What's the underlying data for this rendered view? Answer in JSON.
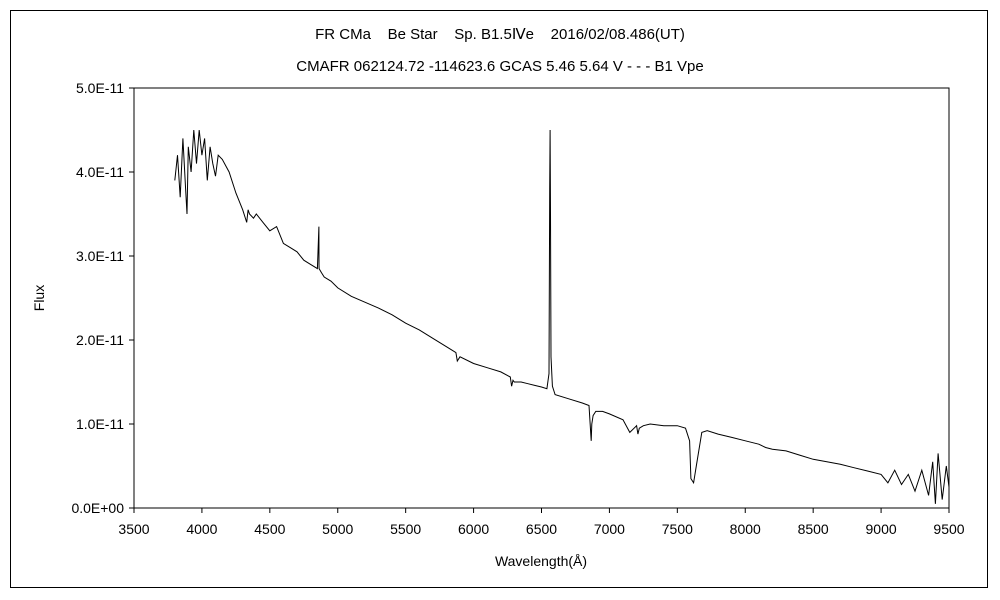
{
  "chart_data": {
    "type": "line",
    "title": "FR CMa    Be Star    Sp. B1.5Ⅳe    2016/02/08.486(UT)",
    "subtitle": "CMAFR 062124.72 -114623.6 GCAS 5.46 5.64 V - - - B1 Vpe",
    "xlabel": "Wavelength(Å)",
    "ylabel": "Flux",
    "xlim": [
      3500,
      9500
    ],
    "ylim": [
      0,
      5e-11
    ],
    "x_ticks": [
      3500,
      4000,
      4500,
      5000,
      5500,
      6000,
      6500,
      7000,
      7500,
      8000,
      8500,
      9000,
      9500
    ],
    "x_tick_labels": [
      "3500",
      "4000",
      "4500",
      "5000",
      "5500",
      "6000",
      "6500",
      "7000",
      "7500",
      "8000",
      "8500",
      "9000",
      "9500"
    ],
    "y_ticks": [
      0,
      1e-11,
      2e-11,
      3e-11,
      4e-11,
      5e-11
    ],
    "y_tick_labels": [
      "0.0E+00",
      "1.0E-11",
      "2.0E-11",
      "3.0E-11",
      "4.0E-11",
      "5.0E-11"
    ],
    "grid": false,
    "series": [
      {
        "color": "#000000",
        "x": [
          3800,
          3820,
          3840,
          3860,
          3880,
          3890,
          3900,
          3920,
          3940,
          3960,
          3980,
          4000,
          4020,
          4040,
          4060,
          4080,
          4100,
          4120,
          4150,
          4200,
          4250,
          4300,
          4330,
          4340,
          4350,
          4380,
          4400,
          4450,
          4500,
          4550,
          4600,
          4650,
          4700,
          4750,
          4800,
          4850,
          4861,
          4862,
          4863,
          4880,
          4900,
          4950,
          5000,
          5100,
          5200,
          5300,
          5400,
          5500,
          5600,
          5700,
          5800,
          5870,
          5880,
          5900,
          6000,
          6100,
          6200,
          6270,
          6280,
          6290,
          6300,
          6350,
          6400,
          6450,
          6500,
          6540,
          6555,
          6560,
          6563,
          6566,
          6570,
          6580,
          6600,
          6700,
          6800,
          6850,
          6866,
          6870,
          6880,
          6900,
          6950,
          7000,
          7100,
          7150,
          7200,
          7210,
          7220,
          7250,
          7300,
          7400,
          7500,
          7560,
          7590,
          7600,
          7620,
          7640,
          7680,
          7720,
          7800,
          7900,
          8000,
          8100,
          8150,
          8200,
          8300,
          8400,
          8500,
          8600,
          8700,
          8800,
          8900,
          9000,
          9050,
          9100,
          9150,
          9200,
          9250,
          9300,
          9350,
          9380,
          9400,
          9420,
          9450,
          9480,
          9500
        ],
        "values": [
          3.9e-11,
          4.2e-11,
          3.7e-11,
          4.4e-11,
          3.8e-11,
          3.5e-11,
          4.3e-11,
          4e-11,
          4.5e-11,
          4.1e-11,
          4.5e-11,
          4.2e-11,
          4.4e-11,
          3.9e-11,
          4.3e-11,
          4.1e-11,
          3.95e-11,
          4.2e-11,
          4.15e-11,
          4e-11,
          3.75e-11,
          3.55e-11,
          3.4e-11,
          3.55e-11,
          3.5e-11,
          3.45e-11,
          3.5e-11,
          3.4e-11,
          3.3e-11,
          3.35e-11,
          3.15e-11,
          3.1e-11,
          3.05e-11,
          2.95e-11,
          2.9e-11,
          2.85e-11,
          3.35e-11,
          2.9e-11,
          2.85e-11,
          2.8e-11,
          2.75e-11,
          2.7e-11,
          2.62e-11,
          2.52e-11,
          2.45e-11,
          2.38e-11,
          2.3e-11,
          2.2e-11,
          2.12e-11,
          2.02e-11,
          1.92e-11,
          1.85e-11,
          1.75e-11,
          1.8e-11,
          1.72e-11,
          1.67e-11,
          1.62e-11,
          1.56e-11,
          1.45e-11,
          1.52e-11,
          1.5e-11,
          1.5e-11,
          1.48e-11,
          1.46e-11,
          1.44e-11,
          1.42e-11,
          1.6e-11,
          3.8e-11,
          4.5e-11,
          3.5e-11,
          1.8e-11,
          1.45e-11,
          1.35e-11,
          1.3e-11,
          1.25e-11,
          1.22e-11,
          8e-12,
          1e-11,
          1.1e-11,
          1.15e-11,
          1.15e-11,
          1.12e-11,
          1.05e-11,
          9e-12,
          9.8e-12,
          8.8e-12,
          9.5e-12,
          9.8e-12,
          1e-11,
          9.8e-12,
          9.8e-12,
          9.5e-12,
          8e-12,
          3.5e-12,
          3e-12,
          5e-12,
          9e-12,
          9.2e-12,
          8.8e-12,
          8.4e-12,
          8e-12,
          7.6e-12,
          7.2e-12,
          7e-12,
          6.8e-12,
          6.3e-12,
          5.8e-12,
          5.5e-12,
          5.2e-12,
          4.8e-12,
          4.4e-12,
          4e-12,
          3e-12,
          4.5e-12,
          2.8e-12,
          4e-12,
          2e-12,
          4.5e-12,
          1.5e-12,
          5.5e-12,
          5e-13,
          6.5e-12,
          1e-12,
          5e-12,
          2.5e-12
        ]
      }
    ]
  }
}
